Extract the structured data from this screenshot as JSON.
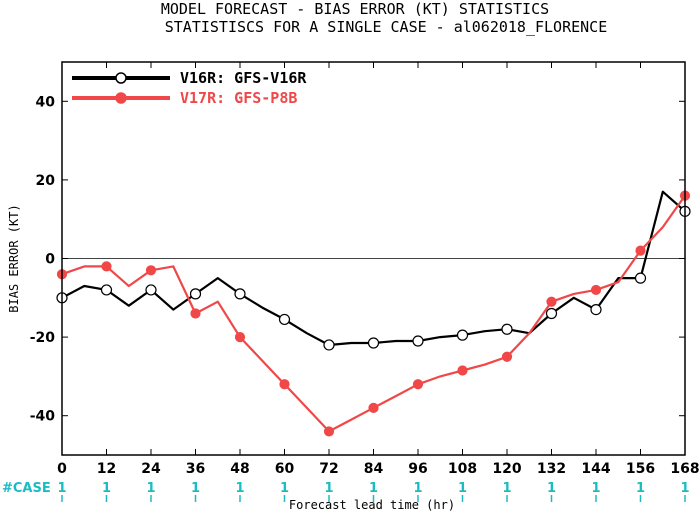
{
  "chart_data": {
    "type": "line",
    "title": "MODEL FORECAST - BIAS ERROR (KT) STATISTICS",
    "subtitle": "STATISTISCS FOR A SINGLE CASE - al062018_FLORENCE",
    "xlabel": "Forecast lead time (hr)",
    "ylabel": "BIAS ERROR (KT)",
    "xlim": [
      0,
      168
    ],
    "ylim": [
      -50,
      50
    ],
    "x_ticks": [
      0,
      12,
      24,
      36,
      48,
      60,
      72,
      84,
      96,
      108,
      120,
      132,
      144,
      156,
      168
    ],
    "y_ticks": [
      40,
      20,
      0,
      -20,
      -40
    ],
    "case_label": "#CASE",
    "case_counts": [
      1,
      1,
      1,
      1,
      1,
      1,
      1,
      1,
      1,
      1,
      1,
      1,
      1,
      1,
      1
    ],
    "legend_placement": "top-left",
    "zero_line": true,
    "series": [
      {
        "name": "V16R: GFS-V16R",
        "color": "#000000",
        "marker": "open-circle",
        "x": [
          0,
          6,
          12,
          18,
          24,
          30,
          36,
          42,
          48,
          54,
          60,
          66,
          72,
          78,
          84,
          90,
          96,
          102,
          108,
          114,
          120,
          126,
          132,
          138,
          144,
          150,
          156,
          162,
          168
        ],
        "y": [
          -10,
          -7,
          -8,
          -12,
          -8,
          -13,
          -9,
          -5,
          -9,
          -12.5,
          -15.5,
          -19,
          -22,
          -21.5,
          -21.5,
          -21,
          -21,
          -20,
          -19.5,
          -18.5,
          -18,
          -19,
          -14,
          -10,
          -13,
          -5,
          -5,
          17,
          12
        ],
        "marker_x": [
          0,
          12,
          24,
          36,
          48,
          60,
          72,
          84,
          96,
          108,
          120,
          132,
          144,
          156,
          168
        ],
        "marker_y": [
          -10,
          -8,
          -8,
          -9,
          -9,
          -15.5,
          -22,
          -21.5,
          -21,
          -19.5,
          -18,
          -14,
          -13,
          -5,
          12
        ]
      },
      {
        "name": "V17R: GFS-P8B",
        "color": "#f04848",
        "marker": "filled-circle",
        "x": [
          0,
          6,
          12,
          18,
          24,
          30,
          36,
          42,
          48,
          54,
          60,
          66,
          72,
          78,
          84,
          90,
          96,
          102,
          108,
          114,
          120,
          126,
          132,
          138,
          144,
          150,
          156,
          162,
          168
        ],
        "y": [
          -4,
          -2,
          -2,
          -7,
          -3,
          -2,
          -14,
          -11,
          -20,
          -26,
          -32,
          -38,
          -44,
          -41,
          -38,
          -35,
          -32,
          -30,
          -28.5,
          -27,
          -25,
          -19,
          -11,
          -9,
          -8,
          -6,
          2,
          8,
          16
        ],
        "marker_x": [
          0,
          12,
          24,
          36,
          48,
          60,
          72,
          84,
          96,
          108,
          120,
          132,
          144,
          156,
          168
        ],
        "marker_y": [
          -4,
          -2,
          -3,
          -14,
          -20,
          -32,
          -44,
          -38,
          -32,
          -28.5,
          -25,
          -11,
          -8,
          2,
          16
        ]
      }
    ]
  }
}
